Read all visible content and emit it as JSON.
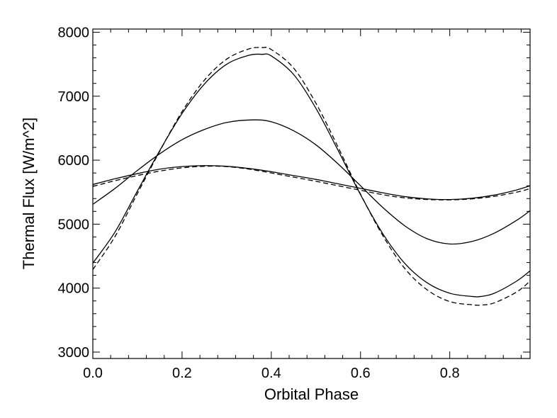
{
  "chart_data": {
    "type": "line",
    "title": "",
    "xlabel": "Orbital Phase",
    "ylabel": "Thermal Flux [W/m^2]",
    "xlim": [
      0.0,
      0.98
    ],
    "ylim": [
      2900,
      8050
    ],
    "xticks": [
      0.0,
      0.2,
      0.4,
      0.6,
      0.8
    ],
    "xtick_labels": [
      "0.0",
      "0.2",
      "0.4",
      "0.6",
      "0.8"
    ],
    "yticks": [
      3000,
      4000,
      5000,
      6000,
      7000,
      8000
    ],
    "ytick_labels": [
      "3000",
      "4000",
      "5000",
      "6000",
      "7000",
      "8000"
    ],
    "grid": false,
    "series": [
      {
        "style": "solid",
        "x": [
          0.0,
          0.05,
          0.1,
          0.15,
          0.2,
          0.25,
          0.3,
          0.35,
          0.38,
          0.4,
          0.45,
          0.5,
          0.55,
          0.6,
          0.65,
          0.7,
          0.75,
          0.8,
          0.85,
          0.87,
          0.9,
          0.95,
          0.98
        ],
        "y": [
          4390,
          4880,
          5520,
          6150,
          6730,
          7190,
          7500,
          7640,
          7655,
          7630,
          7340,
          6810,
          6150,
          5460,
          4850,
          4380,
          4080,
          3920,
          3870,
          3870,
          3920,
          4110,
          4270
        ]
      },
      {
        "style": "dashed",
        "x": [
          0.0,
          0.05,
          0.1,
          0.15,
          0.2,
          0.25,
          0.3,
          0.35,
          0.38,
          0.4,
          0.45,
          0.5,
          0.55,
          0.6,
          0.65,
          0.7,
          0.75,
          0.8,
          0.85,
          0.87,
          0.9,
          0.95,
          0.98
        ],
        "y": [
          4290,
          4810,
          5480,
          6140,
          6760,
          7250,
          7580,
          7740,
          7760,
          7730,
          7440,
          6890,
          6200,
          5470,
          4820,
          4300,
          3970,
          3790,
          3740,
          3735,
          3770,
          3940,
          4110
        ]
      },
      {
        "style": "solid",
        "x": [
          0.0,
          0.05,
          0.1,
          0.15,
          0.2,
          0.25,
          0.3,
          0.36,
          0.4,
          0.45,
          0.5,
          0.55,
          0.6,
          0.65,
          0.7,
          0.75,
          0.8,
          0.85,
          0.9,
          0.95,
          0.98
        ],
        "y": [
          5310,
          5560,
          5840,
          6100,
          6320,
          6480,
          6590,
          6630,
          6600,
          6460,
          6240,
          5940,
          5600,
          5260,
          4970,
          4770,
          4690,
          4730,
          4860,
          5060,
          5210
        ]
      },
      {
        "style": "solid",
        "x": [
          0.0,
          0.05,
          0.1,
          0.15,
          0.2,
          0.25,
          0.3,
          0.35,
          0.4,
          0.45,
          0.5,
          0.55,
          0.6,
          0.65,
          0.7,
          0.75,
          0.8,
          0.85,
          0.9,
          0.95,
          0.98
        ],
        "y": [
          5620,
          5710,
          5790,
          5860,
          5900,
          5915,
          5905,
          5870,
          5820,
          5760,
          5700,
          5630,
          5560,
          5490,
          5430,
          5395,
          5385,
          5405,
          5455,
          5535,
          5600
        ]
      },
      {
        "style": "dashed",
        "x": [
          0.0,
          0.05,
          0.1,
          0.15,
          0.2,
          0.25,
          0.3,
          0.35,
          0.4,
          0.45,
          0.5,
          0.55,
          0.6,
          0.65,
          0.7,
          0.75,
          0.8,
          0.85,
          0.9,
          0.95,
          0.98
        ],
        "y": [
          5590,
          5680,
          5760,
          5830,
          5880,
          5905,
          5900,
          5860,
          5800,
          5735,
          5670,
          5600,
          5530,
          5460,
          5410,
          5385,
          5380,
          5395,
          5435,
          5500,
          5555
        ]
      }
    ]
  }
}
